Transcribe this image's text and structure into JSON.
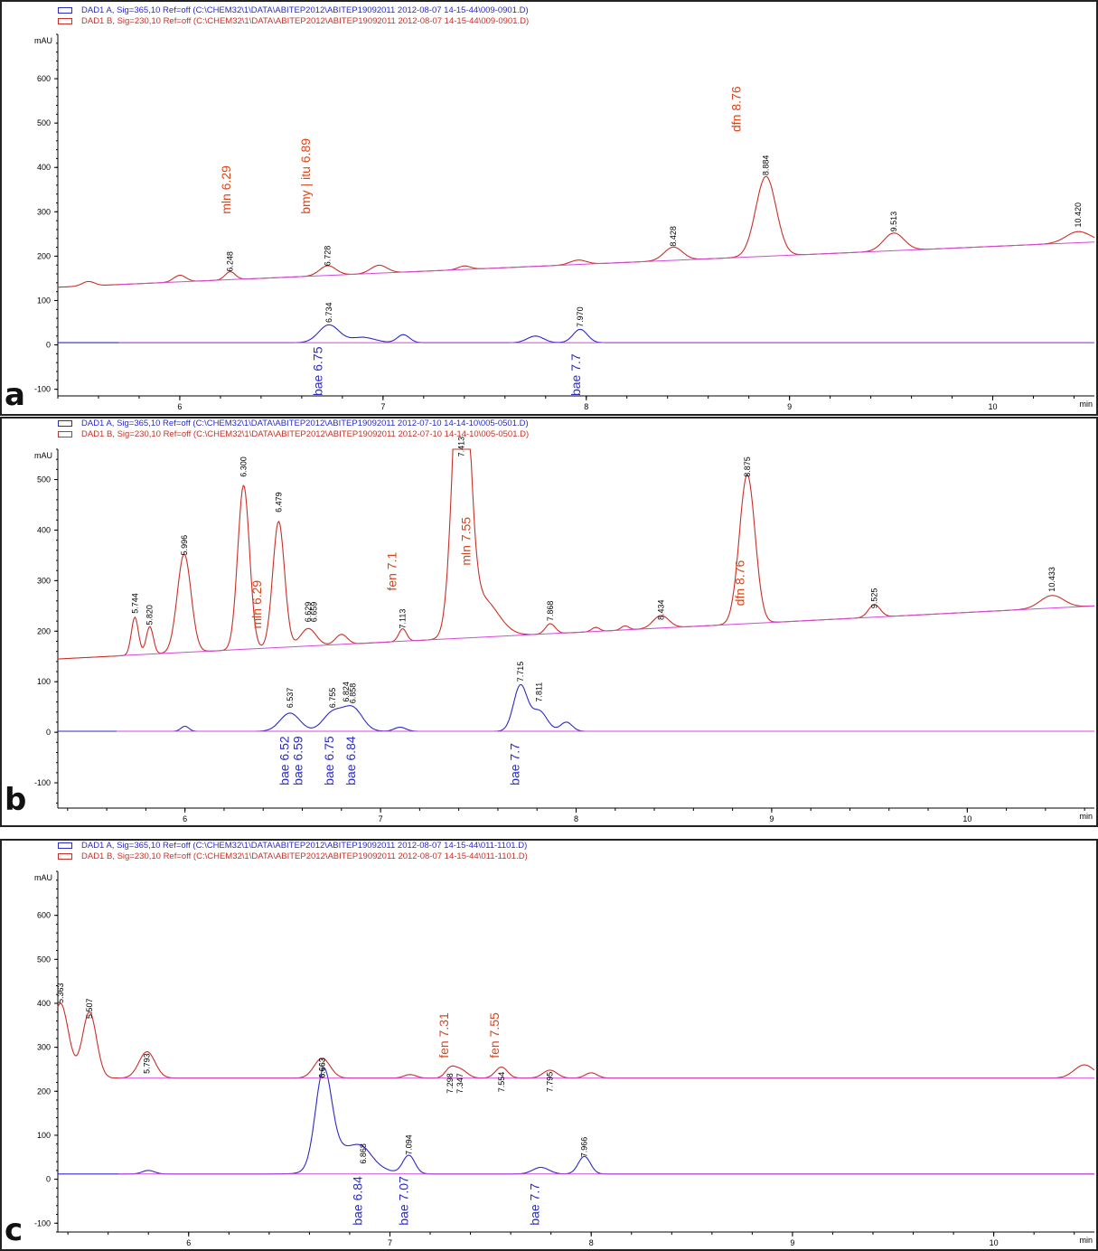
{
  "colors": {
    "signal_a": "#2a2ac8",
    "signal_b": "#c83028",
    "baseline": "#d24ad8",
    "anno_red": "#d8461c",
    "anno_blue": "#2a2ac8",
    "axis": "#000000"
  },
  "axes": {
    "y_unit": "mAU",
    "x_unit": "min"
  },
  "panels": [
    {
      "letter": "a",
      "legend_a": "DAD1 A, Sig=365,10 Ref=off (C:\\CHEM32\\1\\DATA\\ABITEP2012\\ABITEP19092011 2012-08-07 14-15-44\\009-0901.D)",
      "legend_b": "DAD1 B, Sig=230,10 Ref=off (C:\\CHEM32\\1\\DATA\\ABITEP2012\\ABITEP19092011 2012-08-07 14-15-44\\009-0901.D)",
      "x_ticks": [
        "6",
        "7",
        "8",
        "9",
        "10"
      ],
      "y_ticks": [
        "600",
        "500",
        "400",
        "300",
        "200",
        "100",
        "0",
        "-100"
      ]
    },
    {
      "letter": "b",
      "legend_a": "DAD1 A, Sig=365,10 Ref=off (C:\\CHEM32\\1\\DATA\\ABITEP2012\\ABITEP19092011 2012-07-10 14-14-10\\005-0501.D)",
      "legend_b": "DAD1 B, Sig=230,10 Ref=off (C:\\CHEM32\\1\\DATA\\ABITEP2012\\ABITEP19092011 2012-07-10 14-14-10\\005-0501.D)",
      "x_ticks": [
        "6",
        "7",
        "8",
        "9",
        "10"
      ],
      "y_ticks": [
        "500",
        "400",
        "300",
        "200",
        "100",
        "0",
        "-100"
      ]
    },
    {
      "letter": "c",
      "legend_a": "DAD1 A, Sig=365,10 Ref=off (C:\\CHEM32\\1\\DATA\\ABITEP2012\\ABITEP19092011 2012-08-07 14-15-44\\011-1101.D)",
      "legend_b": "DAD1 B, Sig=230,10 Ref=off (C:\\CHEM32\\1\\DATA\\ABITEP2012\\ABITEP19092011 2012-08-07 14-15-44\\011-1101.D)",
      "x_ticks": [
        "6",
        "7",
        "8",
        "9",
        "10"
      ],
      "y_ticks": [
        "600",
        "500",
        "400",
        "300",
        "200",
        "100",
        "0",
        "-100"
      ]
    }
  ],
  "chart_data": [
    {
      "type": "line",
      "panel": "a",
      "xlabel": "min",
      "ylabel": "mAU",
      "xlim": [
        5.4,
        10.5
      ],
      "ylim": [
        -115,
        700
      ],
      "series": [
        {
          "name": "DAD1 A, Sig=365,10",
          "baseline": 5,
          "peaks": [
            [
              6.734,
              40,
              0.05
            ],
            [
              6.9,
              12,
              0.06
            ],
            [
              7.1,
              18,
              0.03
            ],
            [
              7.75,
              15,
              0.04
            ],
            [
              7.97,
              30,
              0.035
            ]
          ]
        },
        {
          "name": "DAD1 B, Sig=230,10",
          "baseline_start": 130,
          "baseline_end": 232,
          "peaks": [
            [
              5.55,
              10,
              0.03
            ],
            [
              6.0,
              15,
              0.03
            ],
            [
              6.248,
              18,
              0.025
            ],
            [
              6.728,
              22,
              0.04
            ],
            [
              6.98,
              18,
              0.04
            ],
            [
              7.4,
              8,
              0.03
            ],
            [
              7.96,
              10,
              0.04
            ],
            [
              8.428,
              30,
              0.045
            ],
            [
              8.884,
              180,
              0.05
            ],
            [
              9.513,
              40,
              0.05
            ],
            [
              10.42,
              25,
              0.06
            ]
          ]
        }
      ],
      "retention_labels": [
        {
          "signal": "B",
          "x": 6.248,
          "y": 165,
          "text": "6.248"
        },
        {
          "signal": "B",
          "x": 6.728,
          "y": 178,
          "text": "6.728"
        },
        {
          "signal": "B",
          "x": 8.428,
          "y": 222,
          "text": "8.428"
        },
        {
          "signal": "B",
          "x": 8.884,
          "y": 382,
          "text": "8.884"
        },
        {
          "signal": "B",
          "x": 9.513,
          "y": 255,
          "text": "9.513"
        },
        {
          "signal": "B",
          "x": 10.42,
          "y": 265,
          "text": "10.420"
        },
        {
          "signal": "A",
          "x": 6.734,
          "y": 50,
          "text": "6.734"
        },
        {
          "signal": "A",
          "x": 7.97,
          "y": 40,
          "text": "7.970"
        }
      ],
      "annotations": [
        {
          "color": "red",
          "x": 6.25,
          "y": 295,
          "text": "mln 6.29"
        },
        {
          "color": "red",
          "x": 6.64,
          "y": 295,
          "text": "bmy | itu 6.89"
        },
        {
          "color": "red",
          "x": 8.76,
          "y": 480,
          "text": "dfn 8.76"
        },
        {
          "color": "blue",
          "x": 6.7,
          "y": -115,
          "text": "bae 6.75"
        },
        {
          "color": "blue",
          "x": 7.97,
          "y": -115,
          "text": "bae 7.7"
        }
      ]
    },
    {
      "type": "line",
      "panel": "b",
      "xlabel": "min",
      "ylabel": "mAU",
      "xlim": [
        5.35,
        10.65
      ],
      "ylim": [
        -150,
        560
      ],
      "series": [
        {
          "name": "DAD1 A, Sig=365,10",
          "baseline": 2,
          "peaks": [
            [
              6.0,
              10,
              0.02
            ],
            [
              6.537,
              36,
              0.05
            ],
            [
              6.755,
              36,
              0.05
            ],
            [
              6.858,
              45,
              0.05
            ],
            [
              7.1,
              8,
              0.03
            ],
            [
              7.715,
              90,
              0.035
            ],
            [
              7.811,
              40,
              0.04
            ],
            [
              7.95,
              18,
              0.03
            ]
          ]
        },
        {
          "name": "DAD1 B, Sig=230,10",
          "baseline_start": 145,
          "baseline_end": 250,
          "peaks": [
            [
              5.744,
              75,
              0.018
            ],
            [
              5.82,
              55,
              0.018
            ],
            [
              5.996,
              195,
              0.035
            ],
            [
              6.3,
              325,
              0.03
            ],
            [
              6.479,
              250,
              0.03
            ],
            [
              6.63,
              35,
              0.04
            ],
            [
              6.8,
              20,
              0.03
            ],
            [
              7.113,
              25,
              0.02
            ],
            [
              7.413,
              650,
              0.04
            ],
            [
              7.52,
              75,
              0.08
            ],
            [
              7.868,
              20,
              0.025
            ],
            [
              8.1,
              8,
              0.02
            ],
            [
              8.25,
              8,
              0.02
            ],
            [
              8.434,
              25,
              0.04
            ],
            [
              8.875,
              295,
              0.04
            ],
            [
              9.525,
              25,
              0.03
            ],
            [
              10.433,
              25,
              0.06
            ]
          ]
        }
      ],
      "retention_labels": [
        {
          "signal": "B",
          "x": 5.744,
          "y": 235,
          "text": "5.744"
        },
        {
          "signal": "B",
          "x": 5.82,
          "y": 212,
          "text": "5.820"
        },
        {
          "signal": "B",
          "x": 5.996,
          "y": 350,
          "text": "5.996"
        },
        {
          "signal": "B",
          "x": 6.3,
          "y": 505,
          "text": "6.300"
        },
        {
          "signal": "B",
          "x": 6.479,
          "y": 435,
          "text": "6.479"
        },
        {
          "signal": "B",
          "x": 6.629,
          "y": 218,
          "text": "6.629"
        },
        {
          "signal": "B",
          "x": 6.659,
          "y": 218,
          "text": "6.659"
        },
        {
          "signal": "B",
          "x": 7.113,
          "y": 205,
          "text": "7.113"
        },
        {
          "signal": "B",
          "x": 7.413,
          "y": 545,
          "text": "7.413"
        },
        {
          "signal": "B",
          "x": 7.868,
          "y": 220,
          "text": "7.868"
        },
        {
          "signal": "B",
          "x": 8.434,
          "y": 222,
          "text": "8.434"
        },
        {
          "signal": "B",
          "x": 8.875,
          "y": 505,
          "text": "8.875"
        },
        {
          "signal": "B",
          "x": 9.525,
          "y": 245,
          "text": "9.525"
        },
        {
          "signal": "B",
          "x": 10.433,
          "y": 278,
          "text": "10.433"
        },
        {
          "signal": "A",
          "x": 6.537,
          "y": 48,
          "text": "6.537"
        },
        {
          "signal": "A",
          "x": 6.755,
          "y": 48,
          "text": "6.755"
        },
        {
          "signal": "A",
          "x": 6.824,
          "y": 60,
          "text": "6.824"
        },
        {
          "signal": "A",
          "x": 6.858,
          "y": 57,
          "text": "6.858"
        },
        {
          "signal": "A",
          "x": 7.715,
          "y": 100,
          "text": "7.715"
        },
        {
          "signal": "A",
          "x": 7.811,
          "y": 60,
          "text": "7.811"
        }
      ],
      "annotations": [
        {
          "color": "red",
          "x": 6.39,
          "y": 205,
          "text": "mln 6.29"
        },
        {
          "color": "red",
          "x": 7.08,
          "y": 280,
          "text": "fen 7.1"
        },
        {
          "color": "red",
          "x": 7.46,
          "y": 330,
          "text": "mln 7.55"
        },
        {
          "color": "red",
          "x": 8.86,
          "y": 250,
          "text": "dfn 8.76"
        },
        {
          "color": "blue",
          "x": 6.53,
          "y": -105,
          "text": "bae 6.52"
        },
        {
          "color": "blue",
          "x": 6.6,
          "y": -105,
          "text": "bae 6.59"
        },
        {
          "color": "blue",
          "x": 6.76,
          "y": -105,
          "text": "bae 6.75"
        },
        {
          "color": "blue",
          "x": 6.87,
          "y": -105,
          "text": "bae 6.84"
        },
        {
          "color": "blue",
          "x": 7.71,
          "y": -105,
          "text": "bae 7.7"
        }
      ]
    },
    {
      "type": "line",
      "panel": "c",
      "xlabel": "min",
      "ylabel": "mAU",
      "xlim": [
        5.35,
        10.5
      ],
      "ylim": [
        -120,
        700
      ],
      "series": [
        {
          "name": "DAD1 A, Sig=365,10",
          "baseline": 12,
          "peaks": [
            [
              5.8,
              8,
              0.03
            ],
            [
              6.67,
              215,
              0.04
            ],
            [
              6.8,
              60,
              0.1
            ],
            [
              6.868,
              15,
              0.04
            ],
            [
              7.094,
              42,
              0.03
            ],
            [
              7.75,
              15,
              0.04
            ],
            [
              7.966,
              40,
              0.03
            ]
          ]
        },
        {
          "name": "DAD1 B, Sig=230,10",
          "baseline_start": 230,
          "baseline_end": 230,
          "peaks": [
            [
              5.363,
              170,
              0.04
            ],
            [
              5.507,
              150,
              0.035
            ],
            [
              5.793,
              60,
              0.04
            ],
            [
              6.663,
              45,
              0.04
            ],
            [
              7.1,
              8,
              0.03
            ],
            [
              7.298,
              18,
              0.025
            ],
            [
              7.347,
              20,
              0.035
            ],
            [
              7.554,
              25,
              0.03
            ],
            [
              7.795,
              18,
              0.035
            ],
            [
              8.0,
              12,
              0.03
            ],
            [
              10.45,
              30,
              0.05
            ]
          ]
        }
      ],
      "retention_labels": [
        {
          "signal": "B",
          "x": 5.363,
          "y": 400,
          "text": "5.363"
        },
        {
          "signal": "B",
          "x": 5.507,
          "y": 365,
          "text": "5.507"
        },
        {
          "signal": "B",
          "x": 5.793,
          "y": 240,
          "text": "5.793"
        },
        {
          "signal": "B",
          "x": 6.663,
          "y": 230,
          "text": "6.663"
        },
        {
          "signal": "B",
          "x": 6.663,
          "y": 230,
          "text": "6.663"
        },
        {
          "signal": "B",
          "x": 7.298,
          "y": 195,
          "text": "7.298"
        },
        {
          "signal": "B",
          "x": 7.347,
          "y": 195,
          "text": "7.347"
        },
        {
          "signal": "B",
          "x": 7.554,
          "y": 198,
          "text": "7.554"
        },
        {
          "signal": "B",
          "x": 7.795,
          "y": 198,
          "text": "7.795"
        },
        {
          "signal": "A",
          "x": 6.868,
          "y": 35,
          "text": "6.868"
        },
        {
          "signal": "A",
          "x": 7.094,
          "y": 55,
          "text": "7.094"
        },
        {
          "signal": "A",
          "x": 7.966,
          "y": 50,
          "text": "7.966"
        }
      ],
      "annotations": [
        {
          "color": "red",
          "x": 7.29,
          "y": 275,
          "text": "fen 7.31"
        },
        {
          "color": "red",
          "x": 7.54,
          "y": 275,
          "text": "fen 7.55"
        },
        {
          "color": "blue",
          "x": 6.86,
          "y": -105,
          "text": "bae 6.84"
        },
        {
          "color": "blue",
          "x": 7.09,
          "y": -105,
          "text": "bae 7.07"
        },
        {
          "color": "blue",
          "x": 7.74,
          "y": -105,
          "text": "bae 7.7"
        }
      ]
    }
  ]
}
